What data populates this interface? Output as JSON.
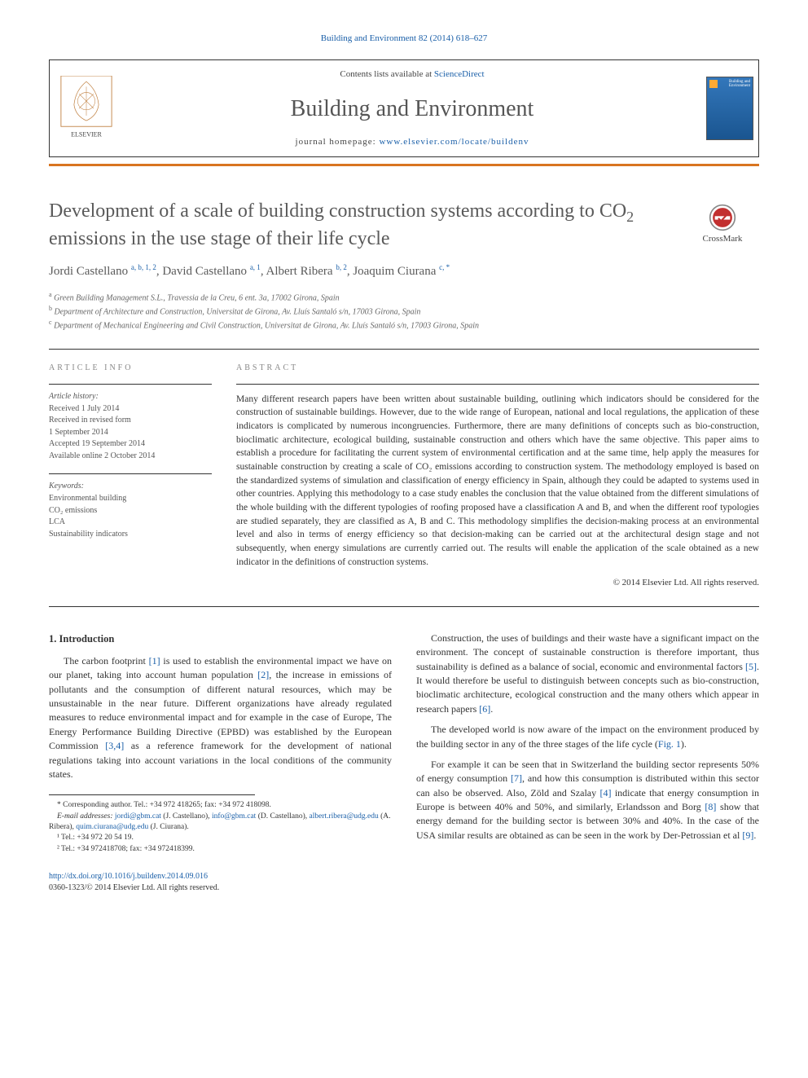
{
  "citation": "Building and Environment 82 (2014) 618–627",
  "header": {
    "contents_prefix": "Contents lists available at ",
    "contents_link": "ScienceDirect",
    "journal_name": "Building and Environment",
    "homepage_prefix": "journal homepage: ",
    "homepage_url": "www.elsevier.com/locate/buildenv",
    "publisher": "ELSEVIER",
    "cover_title": "Building and\nEnvironment"
  },
  "crossmark_label": "CrossMark",
  "article": {
    "title_html": "Development of a scale of building construction systems according to CO<sub>2</sub> emissions in the use stage of their life cycle",
    "authors": [
      {
        "name": "Jordi Castellano",
        "sup": "a, b, 1, 2"
      },
      {
        "name": "David Castellano",
        "sup": "a, 1"
      },
      {
        "name": "Albert Ribera",
        "sup": "b, 2"
      },
      {
        "name": "Joaquim Ciurana",
        "sup": "c, *"
      }
    ],
    "affiliations": [
      {
        "sup": "a",
        "text": "Green Building Management S.L., Travessia de la Creu, 6 ent. 3a, 17002 Girona, Spain"
      },
      {
        "sup": "b",
        "text": "Department of Architecture and Construction, Universitat de Girona, Av. Lluís Santaló s/n, 17003 Girona, Spain"
      },
      {
        "sup": "c",
        "text": "Department of Mechanical Engineering and Civil Construction, Universitat de Girona, Av. Lluís Santaló s/n, 17003 Girona, Spain"
      }
    ]
  },
  "info": {
    "heading": "ARTICLE INFO",
    "history_label": "Article history:",
    "history_lines": [
      "Received 1 July 2014",
      "Received in revised form",
      "1 September 2014",
      "Accepted 19 September 2014",
      "Available online 2 October 2014"
    ],
    "keywords_label": "Keywords:",
    "keywords": [
      "Environmental building",
      "CO₂ emissions",
      "LCA",
      "Sustainability indicators"
    ]
  },
  "abstract": {
    "heading": "ABSTRACT",
    "text": "Many different research papers have been written about sustainable building, outlining which indicators should be considered for the construction of sustainable buildings. However, due to the wide range of European, national and local regulations, the application of these indicators is complicated by numerous incongruencies. Furthermore, there are many definitions of concepts such as bio-construction, bioclimatic architecture, ecological building, sustainable construction and others which have the same objective. This paper aims to establish a procedure for facilitating the current system of environmental certification and at the same time, help apply the measures for sustainable construction by creating a scale of CO₂ emissions according to construction system. The methodology employed is based on the standardized systems of simulation and classification of energy efficiency in Spain, although they could be adapted to systems used in other countries. Applying this methodology to a case study enables the conclusion that the value obtained from the different simulations of the whole building with the different typologies of roofing proposed have a classification A and B, and when the different roof typologies are studied separately, they are classified as A, B and C. This methodology simplifies the decision-making process at an environmental level and also in terms of energy efficiency so that decision-making can be carried out at the architectural design stage and not subsequently, when energy simulations are currently carried out. The results will enable the application of the scale obtained as a new indicator in the definitions of construction systems.",
    "copyright": "© 2014 Elsevier Ltd. All rights reserved."
  },
  "body": {
    "section_heading": "1.  Introduction",
    "left_paragraphs": [
      "The carbon footprint <span class='ref'>[1]</span> is used to establish the environmental impact we have on our planet, taking into account human population <span class='ref'>[2]</span>, the increase in emissions of pollutants and the consumption of different natural resources, which may be unsustainable in the near future. Different organizations have already regulated measures to reduce environmental impact and for example in the case of Europe, The Energy Performance Building Directive (EPBD) was established by the European Commission <span class='ref'>[3,4]</span> as a reference framework for the development of national regulations taking into account variations in the local conditions of the community states."
    ],
    "right_paragraphs": [
      "Construction, the uses of buildings and their waste have a significant impact on the environment. The concept of sustainable construction is therefore important, thus sustainability is defined as a balance of social, economic and environmental factors <span class='ref'>[5]</span>. It would therefore be useful to distinguish between concepts such as bio-construction, bioclimatic architecture, ecological construction and the many others which appear in research papers <span class='ref'>[6]</span>.",
      "The developed world is now aware of the impact on the environment produced by the building sector in any of the three stages of the life cycle (<span class='ref'>Fig. 1</span>).",
      "For example it can be seen that in Switzerland the building sector represents 50% of energy consumption <span class='ref'>[7]</span>, and how this consumption is distributed within this sector can also be observed. Also, Zöld and Szalay <span class='ref'>[4]</span> indicate that energy consumption in Europe is between 40% and 50%, and similarly, Erlandsson and Borg <span class='ref'>[8]</span> show that energy demand for the building sector is between 30% and 40%. In the case of the USA similar results are obtained as can be seen in the work by Der-Petrossian et al <span class='ref'>[9]</span>."
    ]
  },
  "footnotes": {
    "corr": "* Corresponding author. Tel.: +34 972 418265; fax: +34 972 418098.",
    "emails_label": "E-mail addresses: ",
    "emails_html": "<span class='mail'>jordi@gbm.cat</span> (J. Castellano), <span class='mail'>info@gbm.cat</span> (D. Castellano), <span class='mail'>albert.ribera@udg.edu</span> (A. Ribera), <span class='mail'>quim.ciurana@udg.edu</span> (J. Ciurana).",
    "tel1": "¹ Tel.: +34 972 20 54 19.",
    "tel2": "² Tel.: +34 972418708; fax: +34 972418399."
  },
  "bottom": {
    "doi": "http://dx.doi.org/10.1016/j.buildenv.2014.09.016",
    "issn_line": "0360-1323/© 2014 Elsevier Ltd. All rights reserved."
  },
  "colors": {
    "link": "#1a5fa8",
    "accent": "#d97520",
    "text": "#333333",
    "heading_gray": "#5a5a5a"
  }
}
